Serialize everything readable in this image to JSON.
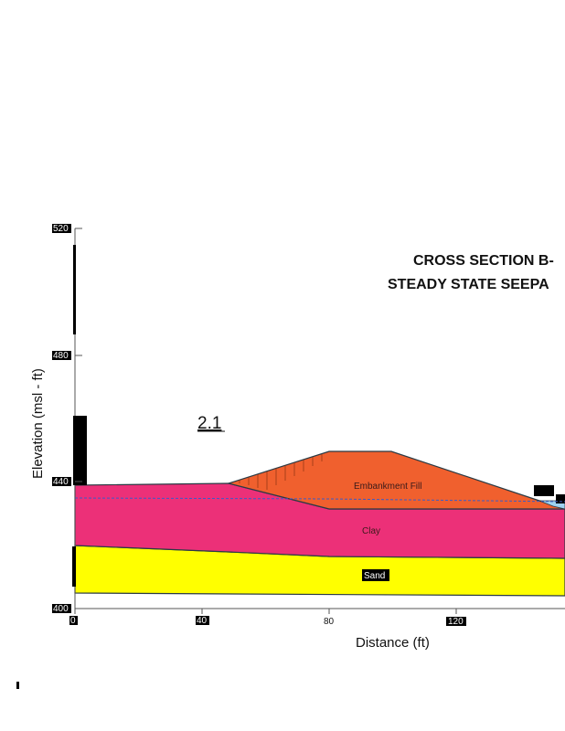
{
  "title_line1": "CROSS SECTION B-",
  "title_line2": "STEADY STATE SEEPA",
  "section_label": "2.1",
  "x_axis": {
    "label": "Distance (ft)",
    "ticks": [
      "0",
      "40",
      "80",
      "120"
    ],
    "range": [
      0,
      160
    ]
  },
  "y_axis": {
    "label": "Elevation (msl - ft)",
    "ticks": [
      "400",
      "440",
      "480",
      "520"
    ],
    "range": [
      400,
      520
    ]
  },
  "layers": {
    "embankment": {
      "label": "Embankment Fill",
      "color": "#f0602e"
    },
    "clay": {
      "label": "Clay",
      "color": "#ec3078"
    },
    "sand": {
      "label": "Sand",
      "color": "#ffff00"
    }
  },
  "phreatic_line_color": "#3a5cc8",
  "water_color": "#9ed2f0",
  "outline_color": "#2a3a44"
}
